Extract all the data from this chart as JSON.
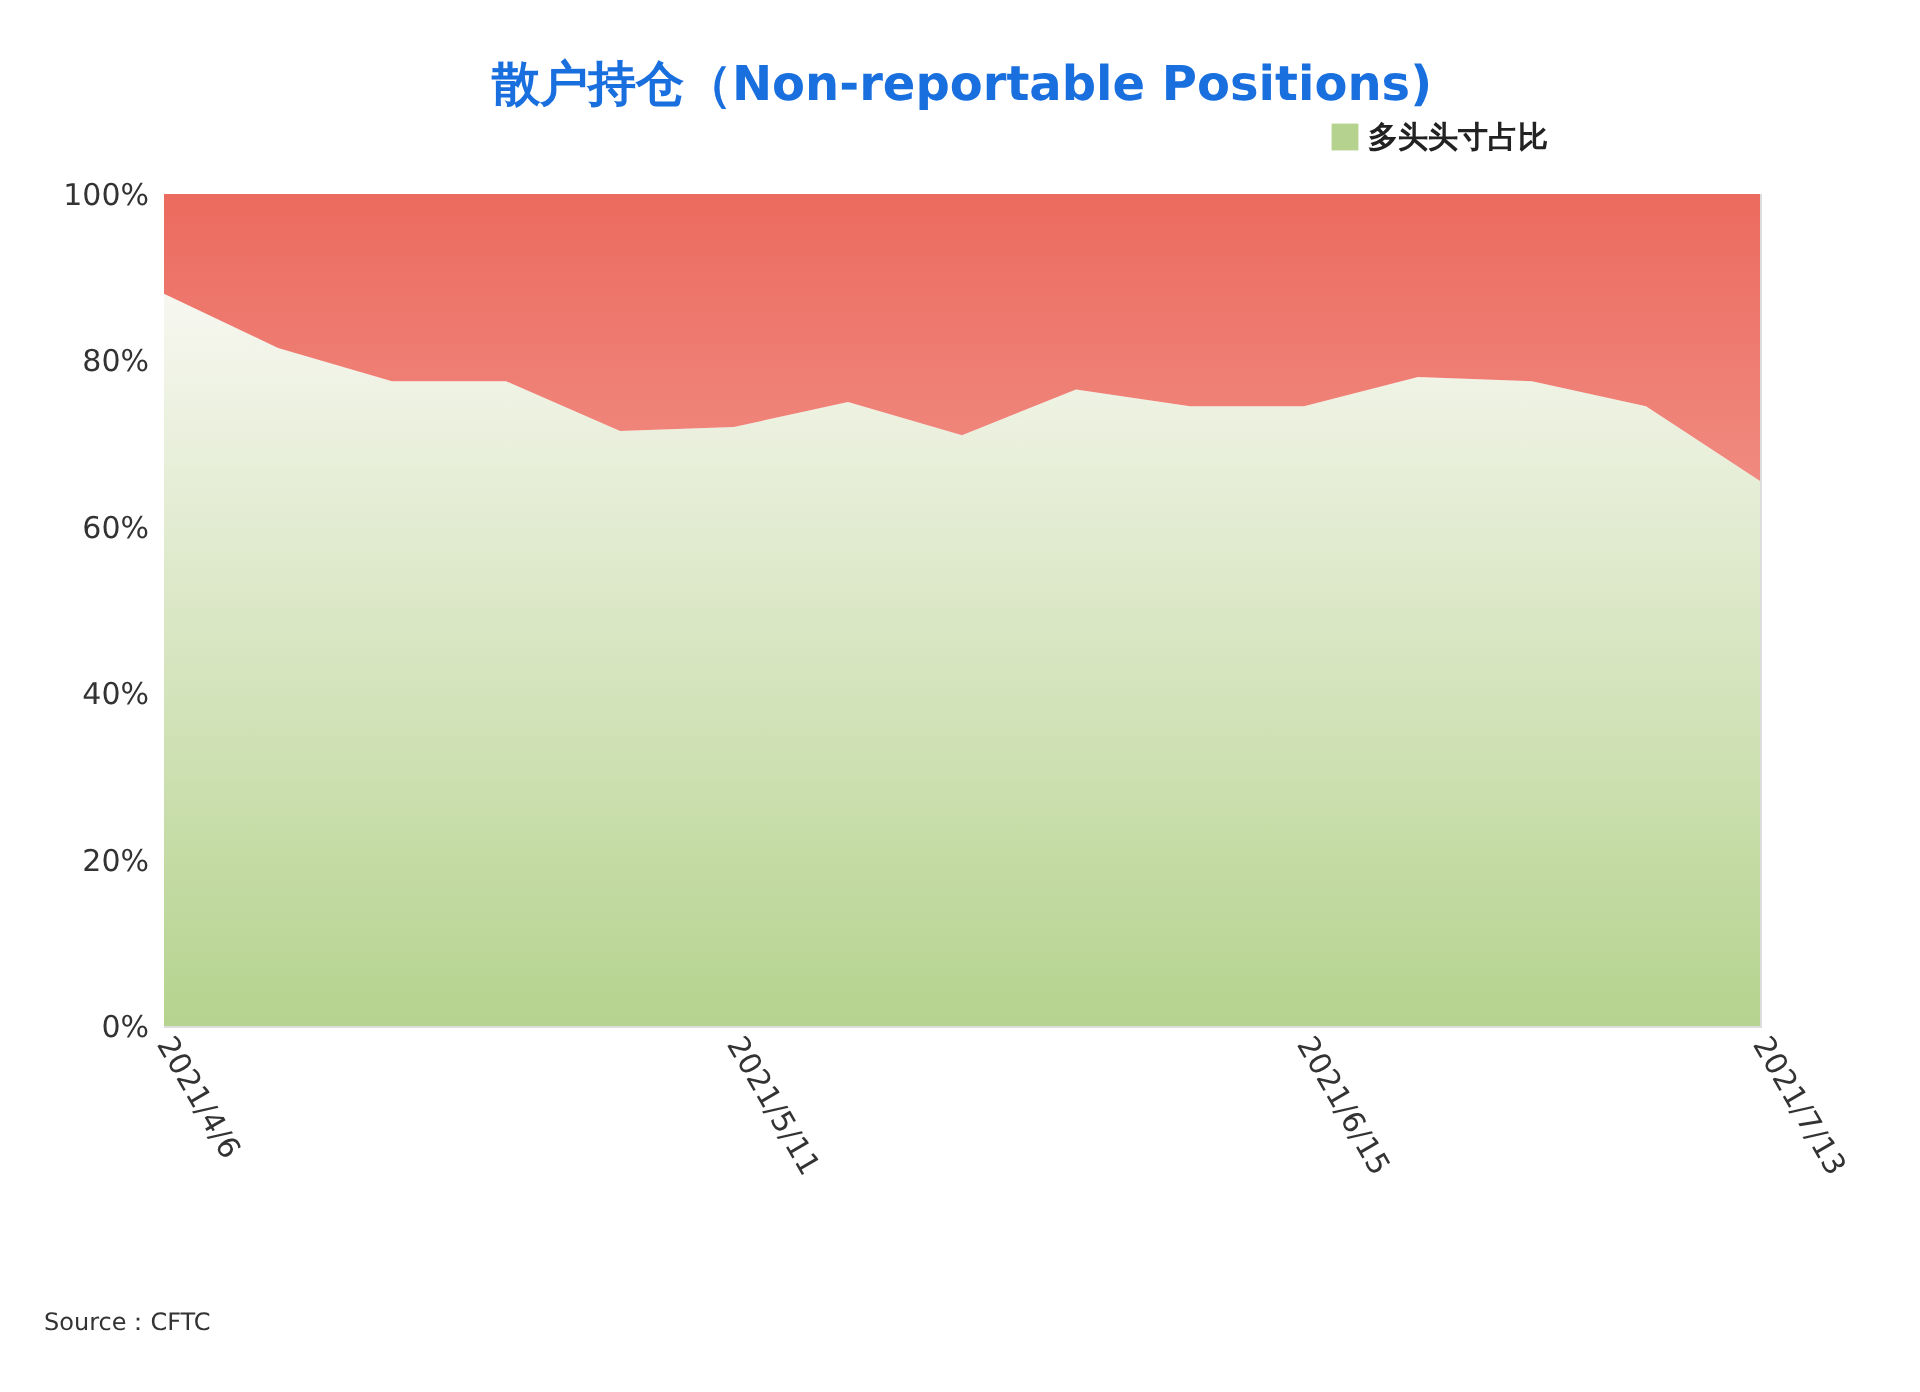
{
  "chart_data": {
    "type": "area",
    "title": "散户持仓（Non-reportable Positions)",
    "stacked": true,
    "x": [
      "2021-04-06",
      "2021-04-13",
      "2021-04-20",
      "2021-04-27",
      "2021-05-04",
      "2021-05-11",
      "2021-05-18",
      "2021-05-25",
      "2021-06-01",
      "2021-06-08",
      "2021-06-15",
      "2021-06-22",
      "2021-06-29",
      "2021-07-06",
      "2021-07-13"
    ],
    "series": [
      {
        "name": "多头头寸占比",
        "color": "#b5d38e",
        "values": [
          88,
          81.5,
          77.5,
          77.5,
          71.5,
          72,
          75,
          71,
          76.5,
          74.5,
          74.5,
          78,
          77.5,
          74.5,
          65.5
        ]
      },
      {
        "color": "#ec6a5e",
        "values": [
          12,
          18.5,
          22.5,
          22.5,
          28.5,
          28,
          25,
          29,
          23.5,
          25.5,
          25.5,
          22,
          22.5,
          25.5,
          34.5
        ]
      }
    ],
    "xlim": [
      "2021-04-06",
      "2021-07-13"
    ],
    "xticks": [
      {
        "value": "2021-04-06",
        "label": "2021/4/6"
      },
      {
        "value": "2021-05-11",
        "label": "2021/5/11"
      },
      {
        "value": "2021-06-15",
        "label": "2021/6/15"
      },
      {
        "value": "2021-07-13",
        "label": "2021/7/13"
      }
    ],
    "ylim": [
      0,
      100
    ],
    "yticks": [
      {
        "value": 0,
        "label": "0%"
      },
      {
        "value": 20,
        "label": "20%"
      },
      {
        "value": 40,
        "label": "40%"
      },
      {
        "value": 60,
        "label": "60%"
      },
      {
        "value": 80,
        "label": "80%"
      },
      {
        "value": 100,
        "label": "100%"
      }
    ],
    "legend": "top right",
    "annotations": [
      "Source：CFTC"
    ]
  }
}
